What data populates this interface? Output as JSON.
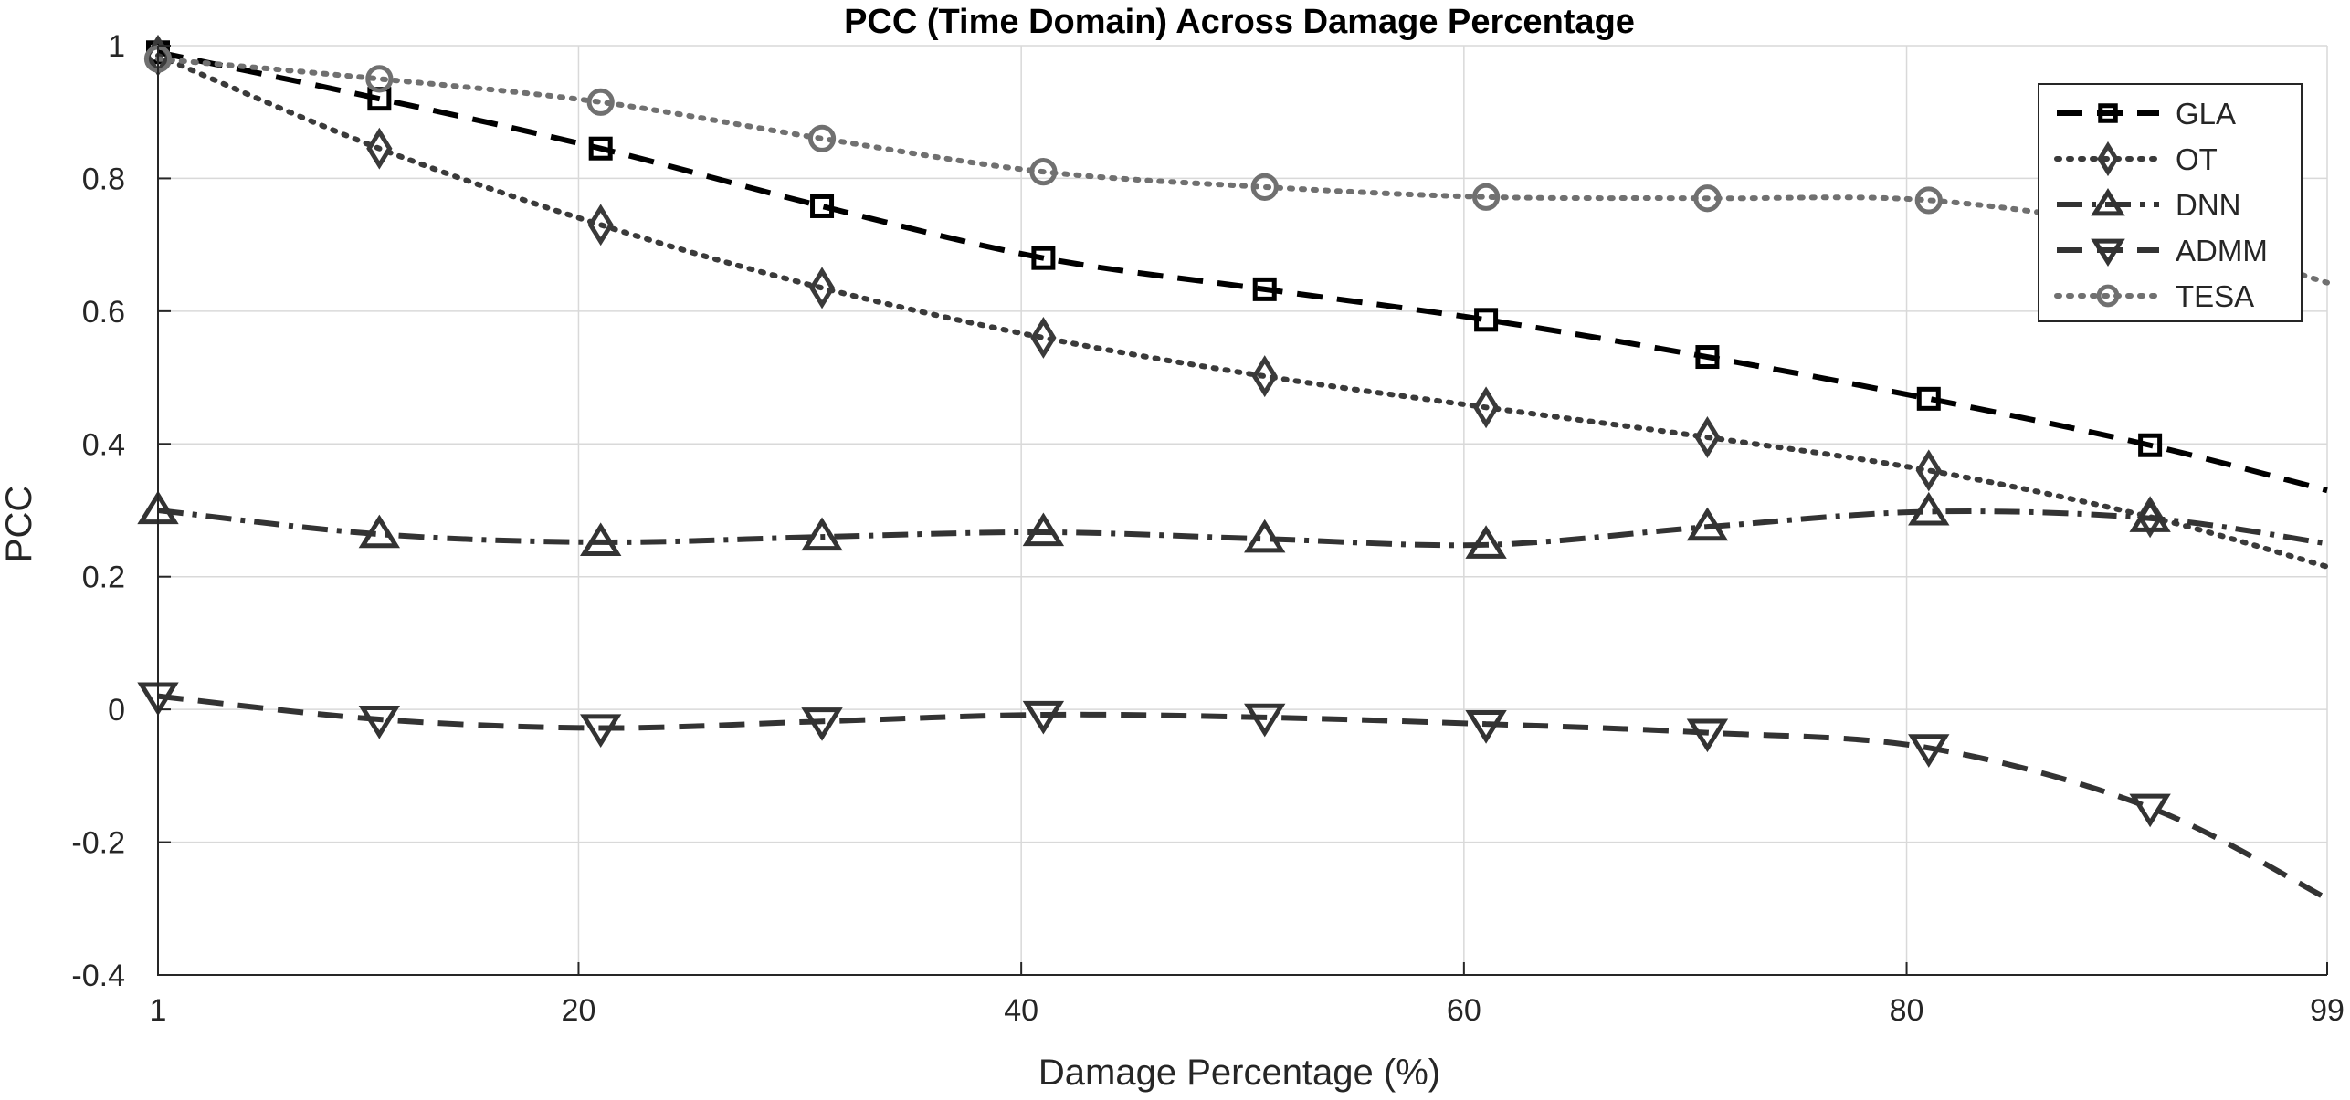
{
  "chart_data": {
    "type": "line",
    "title": "PCC (Time Domain) Across Damage Percentage",
    "xlabel": "Damage Percentage (%)",
    "ylabel": "PCC",
    "xlim": [
      1,
      99
    ],
    "ylim": [
      -0.4,
      1
    ],
    "xticks": [
      1,
      20,
      40,
      60,
      80,
      99
    ],
    "xtick_labels": [
      "1",
      "20",
      "40",
      "60",
      "80",
      "99"
    ],
    "yticks": [
      -0.4,
      -0.2,
      0,
      0.2,
      0.4,
      0.6,
      0.8,
      1
    ],
    "ytick_labels": [
      "-0.4",
      "-0.2",
      "0",
      "0.2",
      "0.4",
      "0.6",
      "0.8",
      "1"
    ],
    "grid": true,
    "legend_position": "top-right",
    "marker_x": [
      1,
      11,
      21,
      31,
      41,
      51,
      61,
      71,
      81,
      91
    ],
    "series": [
      {
        "name": "GLA",
        "color": "#000000",
        "dash": "dashed",
        "marker": "square",
        "x": [
          1,
          11,
          21,
          31,
          41,
          51,
          61,
          71,
          81,
          91,
          99
        ],
        "y": [
          0.99,
          0.92,
          0.845,
          0.758,
          0.68,
          0.633,
          0.587,
          0.531,
          0.468,
          0.398,
          0.33
        ]
      },
      {
        "name": "OT",
        "color": "#3a3a3a",
        "dash": "dotted",
        "marker": "diamond",
        "x": [
          1,
          11,
          21,
          31,
          41,
          51,
          61,
          71,
          81,
          91,
          99
        ],
        "y": [
          0.985,
          0.845,
          0.73,
          0.635,
          0.56,
          0.502,
          0.455,
          0.41,
          0.36,
          0.29,
          0.215
        ]
      },
      {
        "name": "DNN",
        "color": "#333333",
        "dash": "dashdot",
        "marker": "triangle-up",
        "x": [
          1,
          11,
          21,
          31,
          41,
          51,
          61,
          71,
          81,
          91,
          99
        ],
        "y": [
          0.3,
          0.264,
          0.252,
          0.26,
          0.267,
          0.257,
          0.248,
          0.275,
          0.298,
          0.288,
          0.25
        ]
      },
      {
        "name": "ADMM",
        "color": "#333333",
        "dash": "dashed",
        "marker": "triangle-down",
        "x": [
          1,
          11,
          21,
          31,
          41,
          51,
          61,
          71,
          81,
          91,
          99
        ],
        "y": [
          0.02,
          -0.015,
          -0.028,
          -0.018,
          -0.008,
          -0.012,
          -0.022,
          -0.035,
          -0.058,
          -0.148,
          -0.285
        ]
      },
      {
        "name": "TESA",
        "color": "#707070",
        "dash": "dotted",
        "marker": "circle",
        "x": [
          1,
          11,
          21,
          31,
          41,
          51,
          61,
          71,
          81,
          91,
          99
        ],
        "y": [
          0.98,
          0.95,
          0.915,
          0.86,
          0.81,
          0.787,
          0.772,
          0.77,
          0.767,
          0.72,
          0.643
        ]
      }
    ]
  }
}
